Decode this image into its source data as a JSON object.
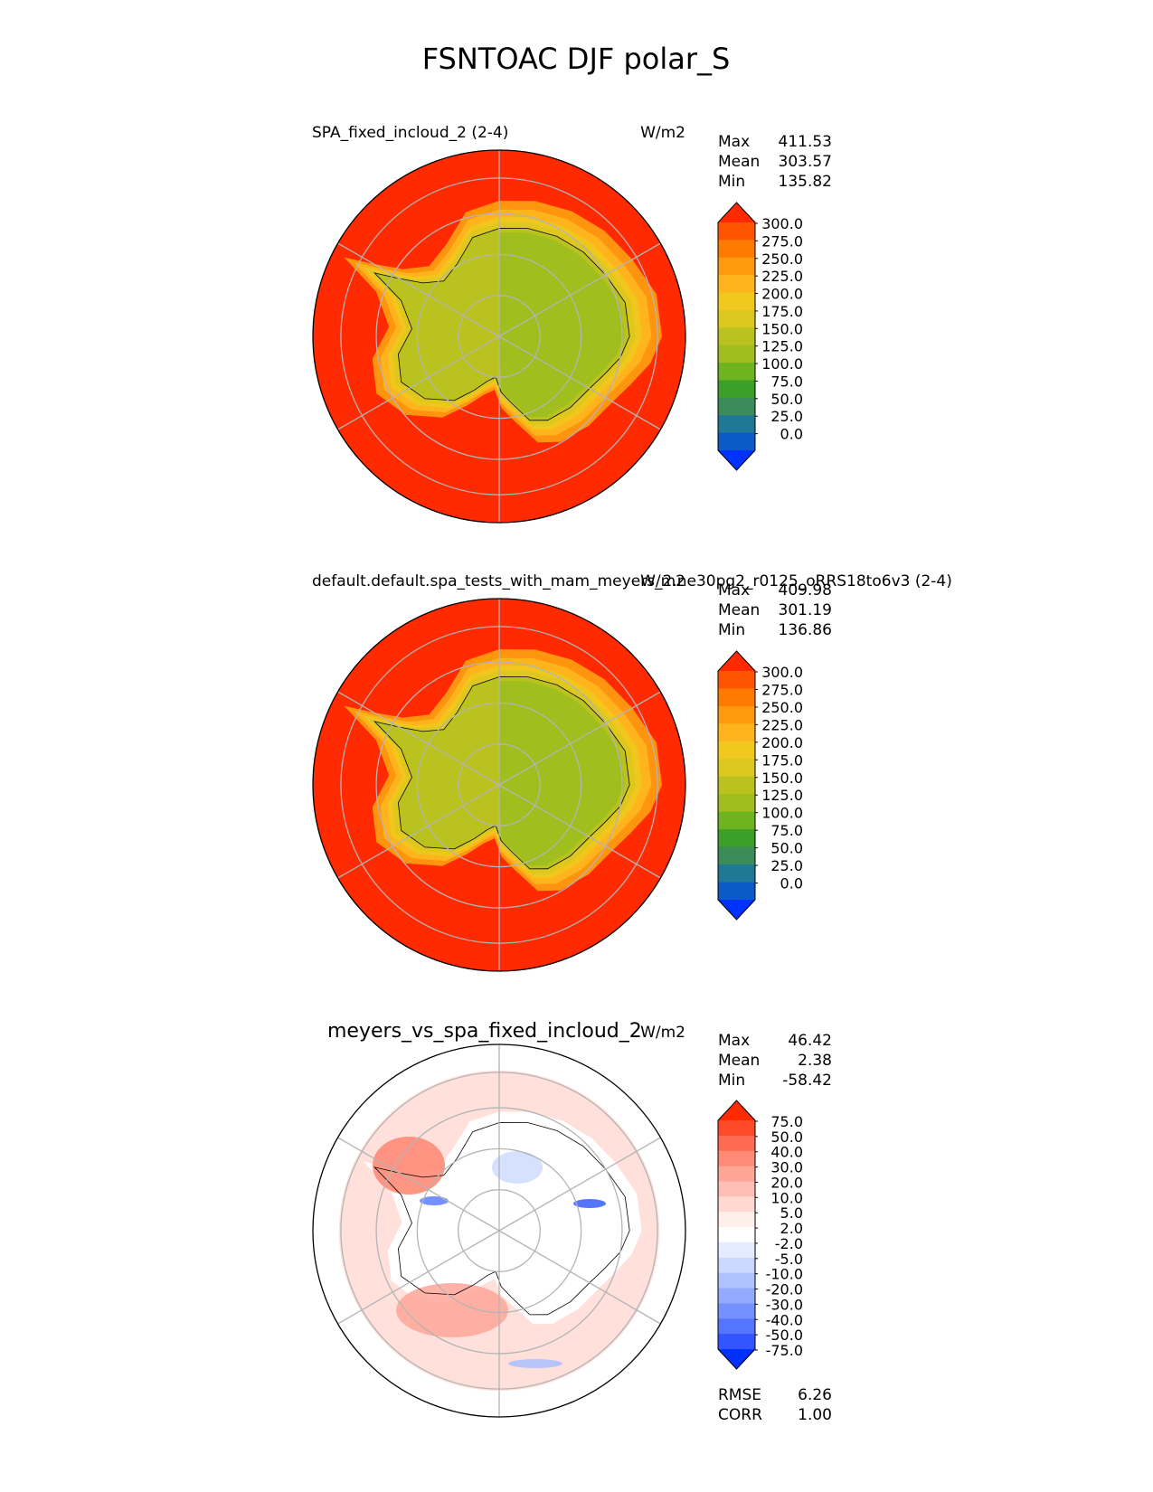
{
  "figure_title": "FSNTOAC DJF polar_S",
  "colors": {
    "ocean_high": "#ff2a00",
    "ice_sheet": "#a0be1e",
    "coast_line": "#000000",
    "grid": "#b4b4b4"
  },
  "chart_data": [
    {
      "type": "heatmap",
      "projection": "south-polar-stereographic",
      "title": "SPA_fixed_incloud_2 (2-4)",
      "units": "W/m2",
      "stats": [
        {
          "label": "Max",
          "value": "411.53"
        },
        {
          "label": "Mean",
          "value": "303.57"
        },
        {
          "label": "Min",
          "value": "135.82"
        }
      ],
      "colorbar": {
        "levels": [
          "300.0",
          "275.0",
          "250.0",
          "225.0",
          "200.0",
          "175.0",
          "150.0",
          "125.0",
          "100.0",
          "75.0",
          "50.0",
          "25.0",
          "0.0"
        ],
        "colors": [
          "#ff2a00",
          "#ff5500",
          "#ff7a00",
          "#ff9a0f",
          "#ffb41e",
          "#f0c81e",
          "#dcc81e",
          "#b9c21e",
          "#a0be1e",
          "#6eb41e",
          "#3ca028",
          "#3c8c5a",
          "#1e7896",
          "#0a5ac8",
          "#0032ff"
        ],
        "extend": "both"
      }
    },
    {
      "type": "heatmap",
      "projection": "south-polar-stereographic",
      "title": "default.default.spa_tests_with_mam_meyers_2.ne30pg2_r0125_oRRS18to6v3 (2-4)",
      "units": "W/m2",
      "stats": [
        {
          "label": "Max",
          "value": "409.98"
        },
        {
          "label": "Mean",
          "value": "301.19"
        },
        {
          "label": "Min",
          "value": "136.86"
        }
      ],
      "colorbar": {
        "levels": [
          "300.0",
          "275.0",
          "250.0",
          "225.0",
          "200.0",
          "175.0",
          "150.0",
          "125.0",
          "100.0",
          "75.0",
          "50.0",
          "25.0",
          "0.0"
        ],
        "colors": [
          "#ff2a00",
          "#ff5500",
          "#ff7a00",
          "#ff9a0f",
          "#ffb41e",
          "#f0c81e",
          "#dcc81e",
          "#b9c21e",
          "#a0be1e",
          "#6eb41e",
          "#3ca028",
          "#3c8c5a",
          "#1e7896",
          "#0a5ac8",
          "#0032ff"
        ],
        "extend": "both"
      }
    },
    {
      "type": "heatmap",
      "projection": "south-polar-stereographic",
      "title": "meyers_vs_spa_fixed_incloud_2",
      "units": "W/m2",
      "stats": [
        {
          "label": "Max",
          "value": "46.42"
        },
        {
          "label": "Mean",
          "value": "2.38"
        },
        {
          "label": "Min",
          "value": "-58.42"
        }
      ],
      "colorbar": {
        "levels": [
          "75.0",
          "50.0",
          "40.0",
          "30.0",
          "20.0",
          "10.0",
          "5.0",
          "2.0",
          "-2.0",
          "-5.0",
          "-10.0",
          "-20.0",
          "-30.0",
          "-40.0",
          "-50.0",
          "-75.0"
        ],
        "colors": [
          "#ff2a00",
          "#ff4a2a",
          "#ff6a50",
          "#ff8a75",
          "#ffa598",
          "#ffbfb5",
          "#ffd8d2",
          "#ffeeea",
          "#ffffff",
          "#e6ecff",
          "#ccd8ff",
          "#b0c2ff",
          "#93aaff",
          "#7590ff",
          "#5675ff",
          "#3355ff",
          "#0032ff"
        ],
        "extend": "both"
      },
      "footer_stats": [
        {
          "label": "RMSE",
          "value": "6.26"
        },
        {
          "label": "CORR",
          "value": "1.00"
        }
      ]
    }
  ]
}
